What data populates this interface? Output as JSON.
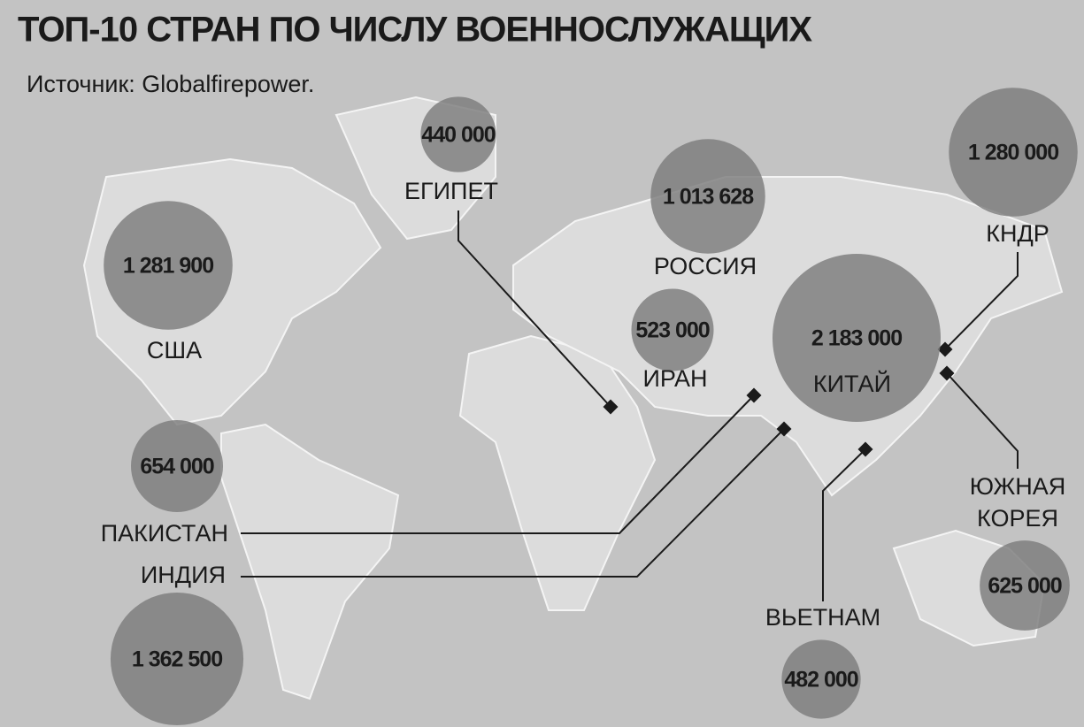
{
  "title": "ТОП-10 СТРАН ПО ЧИСЛУ ВОЕННОСЛУЖАЩИХ",
  "source": "Источник: Globalfirepower.",
  "countries": [
    {
      "name": "ЕГИПЕТ",
      "value": 440000,
      "value_label": "440 000"
    },
    {
      "name": "РОССИЯ",
      "value": 1013628,
      "value_label": "1 013 628"
    },
    {
      "name": "КНДР",
      "value": 1280000,
      "value_label": "1 280 000"
    },
    {
      "name": "США",
      "value": 1281900,
      "value_label": "1 281 900"
    },
    {
      "name": "ИРАН",
      "value": 523000,
      "value_label": "523 000"
    },
    {
      "name": "КИТАЙ",
      "value": 2183000,
      "value_label": "2 183 000"
    },
    {
      "name": "ПАКИСТАН",
      "value": 654000,
      "value_label": "654 000"
    },
    {
      "name": "ИНДИЯ",
      "value": 1362500,
      "value_label": "1 362 500"
    },
    {
      "name": "ВЬЕТНАМ",
      "value": 482000,
      "value_label": "482 000"
    },
    {
      "name": "ЮЖНАЯ КОРЕЯ",
      "value": 625000,
      "value_label": "625 000"
    }
  ]
}
